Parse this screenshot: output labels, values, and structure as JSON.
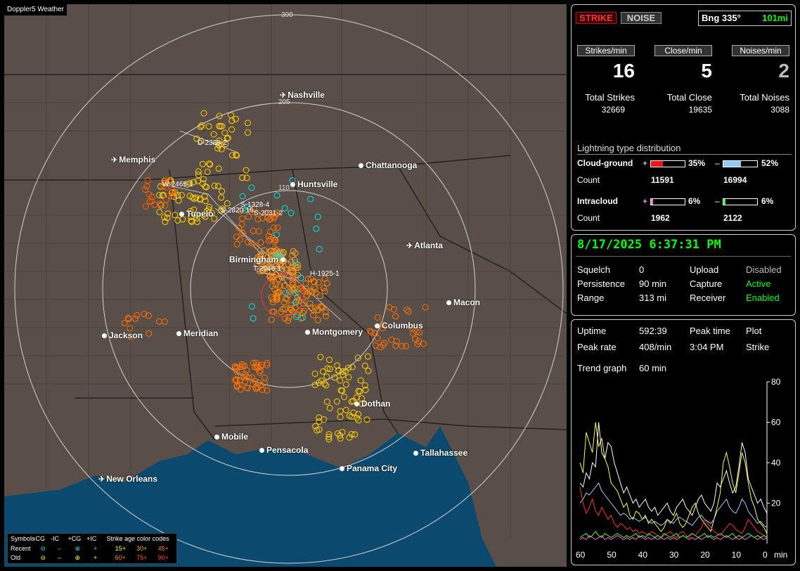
{
  "app": {
    "title": "Doppler5 Weather"
  },
  "map": {
    "rings": [
      "300",
      "205",
      "110"
    ],
    "cities": [
      {
        "name": "Nashville",
        "type": "airport"
      },
      {
        "name": "Memphis",
        "type": "airport"
      },
      {
        "name": "Chattanooga",
        "type": "city"
      },
      {
        "name": "Huntsville",
        "type": "city"
      },
      {
        "name": "Tupelo",
        "type": "city"
      },
      {
        "name": "Atlanta",
        "type": "airport"
      },
      {
        "name": "Birmingham",
        "type": "city"
      },
      {
        "name": "Macon",
        "type": "city"
      },
      {
        "name": "Jackson",
        "type": "city"
      },
      {
        "name": "Meridian",
        "type": "city"
      },
      {
        "name": "Montgomery",
        "type": "city"
      },
      {
        "name": "Columbus",
        "type": "city"
      },
      {
        "name": "Dothan",
        "type": "city"
      },
      {
        "name": "Mobile",
        "type": "city"
      },
      {
        "name": "Pensacola",
        "type": "city"
      },
      {
        "name": "Tallahassee",
        "type": "city"
      },
      {
        "name": "Panama City",
        "type": "city"
      },
      {
        "name": "New Orleans",
        "type": "airport"
      }
    ],
    "tracks": [
      "D-2383-2",
      "W-2465-1",
      "S-1328-4",
      "S-2820-16",
      "S-2031-2",
      "T-2046-1",
      "H-1925-1"
    ],
    "legend": {
      "symbols_label": "Symbols",
      "col_neg_cg": "-CG",
      "col_neg_ic": "-IC",
      "col_pos_cg": "+CG",
      "col_pos_ic": "+IC",
      "age_label": "Strike age color codes",
      "recent_label": "Recent",
      "old_label": "Old",
      "recent_ages": [
        "15+",
        "30+",
        "45+"
      ],
      "old_ages": [
        "60+",
        "75+",
        "90+"
      ],
      "colors": {
        "recent": "#00e5e5",
        "old": "#ffff00",
        "age15": "#ffff00",
        "age30": "#ffb000",
        "age45": "#ff8000",
        "age60": "#ff8000",
        "age75": "#ff6000",
        "age90": "#ff4000"
      }
    }
  },
  "status": {
    "strike_btn": "STRIKE",
    "noise_btn": "NOISE",
    "bearing": "Bng 335°",
    "distance": "101mi",
    "strikes_min_label": "Strikes/min",
    "close_min_label": "Close/min",
    "noises_min_label": "Noises/min",
    "strikes_min": "16",
    "close_min": "5",
    "noises_min": "2",
    "total_strikes_label": "Total Strikes",
    "total_close_label": "Total Close",
    "total_noises_label": "Total Noises",
    "total_strikes": "32669",
    "total_close": "19635",
    "total_noises": "3088",
    "dist_title": "Lightning type distribution",
    "cloud_ground_label": "Cloud-ground",
    "intracloud_label": "Intracloud",
    "count_label": "Count",
    "plus": "+",
    "minus": "–",
    "cg_pos_pct": "35%",
    "cg_neg_pct": "52%",
    "cg_pos_count": "11591",
    "cg_neg_count": "16994",
    "ic_pos_pct": "6%",
    "ic_neg_pct": "6%",
    "ic_pos_count": "1962",
    "ic_neg_count": "2122",
    "cg_pos_frac": 0.35,
    "cg_neg_frac": 0.52,
    "ic_pos_frac": 0.06,
    "ic_neg_frac": 0.06
  },
  "settings": {
    "datetime": "8/17/2025 6:37:31 PM",
    "squelch_label": "Squelch",
    "squelch": "0",
    "persistence_label": "Persistence",
    "persistence": "90 min",
    "range_label": "Range",
    "range": "313 mi",
    "upload_label": "Upload",
    "upload": "Disabled",
    "capture_label": "Capture",
    "capture": "Active",
    "receiver_label": "Receiver",
    "receiver": "Enabled"
  },
  "trend": {
    "uptime_label": "Uptime",
    "uptime": "592:39",
    "peak_time_label": "Peak time",
    "peak_time": "3:04 PM",
    "plot_label": "Plot",
    "plot": "Strike",
    "peak_rate_label": "Peak rate",
    "peak_rate": "408/min",
    "trend_graph_label": "Trend graph",
    "trend_graph": "60 min",
    "x_unit": "min"
  },
  "chart_data": {
    "type": "line",
    "xlabel": "min",
    "ylabel": "",
    "x_ticks": [
      "60",
      "50",
      "40",
      "30",
      "20",
      "10",
      "0"
    ],
    "y_ticks": [
      "20",
      "40",
      "60",
      "80"
    ],
    "xlim": [
      60,
      0
    ],
    "ylim": [
      0,
      80
    ],
    "series": [
      {
        "color": "#ffff33",
        "values": [
          40,
          35,
          55,
          50,
          45,
          60,
          48,
          52,
          42,
          38,
          30,
          28,
          26,
          22,
          18,
          20,
          14,
          12,
          16,
          15,
          12,
          14,
          10,
          12,
          10,
          8,
          6,
          8,
          12,
          10,
          12,
          15,
          10,
          8,
          10,
          14,
          18,
          20,
          15,
          12,
          10,
          8,
          6,
          12,
          18,
          25,
          40,
          45,
          38,
          30,
          25,
          35,
          45,
          40,
          30,
          22,
          18,
          12,
          10,
          8,
          5
        ]
      },
      {
        "color": "#ffffff",
        "values": [
          30,
          28,
          35,
          32,
          40,
          38,
          60,
          45,
          42,
          50,
          48,
          40,
          35,
          30,
          25,
          28,
          24,
          20,
          22,
          18,
          20,
          22,
          18,
          16,
          18,
          14,
          16,
          18,
          20,
          16,
          14,
          18,
          20,
          22,
          18,
          16,
          14,
          18,
          22,
          24,
          20,
          18,
          16,
          20,
          30,
          28,
          32,
          36,
          30,
          25,
          28,
          38,
          50,
          45,
          32,
          28,
          24,
          20,
          22,
          18,
          15
        ]
      },
      {
        "color": "#9fd0ff",
        "values": [
          20,
          22,
          25,
          24,
          26,
          28,
          30,
          26,
          24,
          22,
          20,
          18,
          16,
          14,
          15,
          14,
          12,
          13,
          12,
          11,
          12,
          13,
          11,
          10,
          11,
          10,
          9,
          10,
          12,
          11,
          10,
          12,
          13,
          12,
          11,
          10,
          9,
          11,
          13,
          14,
          12,
          11,
          10,
          12,
          16,
          18,
          20,
          22,
          18,
          16,
          15,
          18,
          22,
          20,
          16,
          14,
          12,
          10,
          11,
          9,
          8
        ]
      },
      {
        "color": "#ff3030",
        "values": [
          28,
          20,
          15,
          18,
          22,
          16,
          14,
          18,
          15,
          12,
          14,
          10,
          8,
          10,
          9,
          7,
          8,
          6,
          7,
          5,
          6,
          5,
          4,
          6,
          5,
          4,
          3,
          4,
          5,
          6,
          4,
          3,
          5,
          6,
          4,
          3,
          5,
          4,
          6,
          8,
          12,
          10,
          8,
          6,
          5,
          4,
          6,
          8,
          10,
          9,
          7,
          6,
          5,
          8,
          12,
          10,
          8,
          6,
          5,
          4,
          3
        ]
      },
      {
        "color": "#ff60d0",
        "values": [
          2,
          3,
          2,
          4,
          3,
          2,
          3,
          4,
          2,
          3,
          2,
          3,
          4,
          3,
          2,
          3,
          2,
          3,
          2,
          4,
          3,
          2,
          3,
          2,
          3,
          2,
          3,
          2,
          3,
          2,
          3,
          2,
          3,
          4,
          3,
          2,
          3,
          2,
          3,
          2,
          3,
          4,
          3,
          2,
          3,
          2,
          3,
          4,
          3,
          2,
          3,
          2,
          3,
          2,
          3,
          4,
          3,
          2,
          3,
          2,
          3
        ]
      },
      {
        "color": "#40ff40",
        "values": [
          3,
          4,
          5,
          3,
          4,
          6,
          4,
          3,
          5,
          4,
          3,
          4,
          5,
          4,
          3,
          4,
          3,
          4,
          5,
          3,
          4,
          3,
          5,
          4,
          3,
          4,
          3,
          5,
          4,
          3,
          4,
          5,
          3,
          4,
          3,
          4,
          5,
          4,
          3,
          4,
          5,
          3,
          4,
          3,
          4,
          5,
          4,
          3,
          4,
          5,
          3,
          4,
          3,
          4,
          5,
          4,
          3,
          4,
          3,
          4,
          3
        ]
      }
    ]
  }
}
